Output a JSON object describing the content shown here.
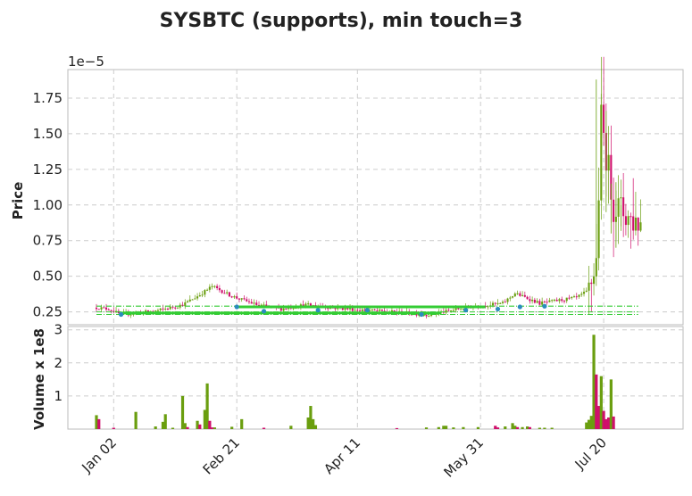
{
  "chart_data": {
    "type": "candlestick",
    "title": "SYSBTC (supports), min touch=3",
    "grid": true,
    "colors": {
      "up": "#6a9e0f",
      "down": "#cf0f6b",
      "support": "#33cc33",
      "touch_marker": "#2b8cbe",
      "grid": "#cccccc",
      "axis": "#bbbbbb"
    },
    "price_panel": {
      "ylabel": "Price",
      "scale_label": "1e−5",
      "ylim": [
        0.16,
        1.95
      ],
      "yticks": [
        0.25,
        0.5,
        0.75,
        1.0,
        1.25,
        1.5,
        1.75
      ],
      "ytick_labels": [
        "0.25",
        "0.50",
        "0.75",
        "1.00",
        "1.25",
        "1.50",
        "1.75"
      ]
    },
    "volume_panel": {
      "ylabel": "Volume x 1e8",
      "ylim": [
        0,
        3.1
      ],
      "yticks": [
        1,
        2,
        3
      ],
      "ytick_labels": [
        "1",
        "2",
        "3"
      ]
    },
    "x_range": [
      0,
      227
    ],
    "x_ticks": [
      {
        "label": "Jan 02",
        "x": 7
      },
      {
        "label": "Feb 21",
        "x": 57
      },
      {
        "label": "Apr 11",
        "x": 106
      },
      {
        "label": "May 31",
        "x": 156
      },
      {
        "label": "Jul 20",
        "x": 206
      }
    ],
    "support_levels": [
      {
        "level": 0.29,
        "x_start": 0,
        "x_end": 220,
        "style": "dash-dot"
      },
      {
        "level": 0.285,
        "x_start": 57,
        "x_end": 158,
        "style": "solid"
      },
      {
        "level": 0.25,
        "x_start": 0,
        "x_end": 220,
        "style": "dash-dot"
      },
      {
        "level": 0.242,
        "x_start": 10,
        "x_end": 140,
        "style": "solid"
      },
      {
        "level": 0.232,
        "x_start": 0,
        "x_end": 220,
        "style": "dash-dot"
      }
    ],
    "touch_points": [
      {
        "x": 10,
        "y": 0.232
      },
      {
        "x": 57,
        "y": 0.285
      },
      {
        "x": 68,
        "y": 0.255
      },
      {
        "x": 90,
        "y": 0.262
      },
      {
        "x": 110,
        "y": 0.262
      },
      {
        "x": 132,
        "y": 0.232
      },
      {
        "x": 150,
        "y": 0.262
      },
      {
        "x": 163,
        "y": 0.27
      },
      {
        "x": 172,
        "y": 0.285
      },
      {
        "x": 182,
        "y": 0.29
      }
    ],
    "segments": [
      {
        "x0": 0,
        "x1": 5,
        "p0": 0.28,
        "p1": 0.27
      },
      {
        "x0": 5,
        "x1": 10,
        "p0": 0.27,
        "p1": 0.23
      },
      {
        "x0": 10,
        "x1": 25,
        "p0": 0.23,
        "p1": 0.26
      },
      {
        "x0": 25,
        "x1": 35,
        "p0": 0.26,
        "p1": 0.3
      },
      {
        "x0": 35,
        "x1": 42,
        "p0": 0.3,
        "p1": 0.37
      },
      {
        "x0": 42,
        "x1": 47,
        "p0": 0.37,
        "p1": 0.43
      },
      {
        "x0": 47,
        "x1": 55,
        "p0": 0.43,
        "p1": 0.36
      },
      {
        "x0": 55,
        "x1": 65,
        "p0": 0.36,
        "p1": 0.3
      },
      {
        "x0": 65,
        "x1": 75,
        "p0": 0.3,
        "p1": 0.27
      },
      {
        "x0": 75,
        "x1": 85,
        "p0": 0.27,
        "p1": 0.3
      },
      {
        "x0": 85,
        "x1": 95,
        "p0": 0.3,
        "p1": 0.28
      },
      {
        "x0": 95,
        "x1": 110,
        "p0": 0.28,
        "p1": 0.26
      },
      {
        "x0": 110,
        "x1": 120,
        "p0": 0.26,
        "p1": 0.25
      },
      {
        "x0": 120,
        "x1": 135,
        "p0": 0.25,
        "p1": 0.23
      },
      {
        "x0": 135,
        "x1": 150,
        "p0": 0.23,
        "p1": 0.28
      },
      {
        "x0": 150,
        "x1": 165,
        "p0": 0.28,
        "p1": 0.31
      },
      {
        "x0": 165,
        "x1": 170,
        "p0": 0.31,
        "p1": 0.38
      },
      {
        "x0": 170,
        "x1": 180,
        "p0": 0.38,
        "p1": 0.31
      },
      {
        "x0": 180,
        "x1": 195,
        "p0": 0.31,
        "p1": 0.35
      },
      {
        "x0": 195,
        "x1": 200,
        "p0": 0.35,
        "p1": 0.4
      },
      {
        "x0": 200,
        "x1": 203,
        "p0": 0.4,
        "p1": 0.6
      },
      {
        "x0": 203,
        "x1": 205,
        "p0": 0.6,
        "p1": 1.6
      },
      {
        "x0": 205,
        "x1": 210,
        "p0": 1.6,
        "p1": 1.0
      },
      {
        "x0": 210,
        "x1": 214,
        "p0": 1.0,
        "p1": 0.95
      },
      {
        "x0": 214,
        "x1": 217,
        "p0": 0.95,
        "p1": 0.9
      },
      {
        "x0": 217,
        "x1": 221,
        "p0": 0.9,
        "p1": 0.88
      }
    ],
    "volume_spikes": [
      {
        "x": 0,
        "v": 0.42,
        "up": true
      },
      {
        "x": 1,
        "v": 0.3,
        "up": false
      },
      {
        "x": 7,
        "v": 0.04,
        "up": false
      },
      {
        "x": 16,
        "v": 0.52,
        "up": true
      },
      {
        "x": 24,
        "v": 0.08,
        "up": true
      },
      {
        "x": 27,
        "v": 0.22,
        "up": true
      },
      {
        "x": 28,
        "v": 0.45,
        "up": true
      },
      {
        "x": 31,
        "v": 0.04,
        "up": true
      },
      {
        "x": 35,
        "v": 1.0,
        "up": true
      },
      {
        "x": 36,
        "v": 0.18,
        "up": true
      },
      {
        "x": 37,
        "v": 0.06,
        "up": false
      },
      {
        "x": 41,
        "v": 0.25,
        "up": true
      },
      {
        "x": 42,
        "v": 0.14,
        "up": false
      },
      {
        "x": 44,
        "v": 0.58,
        "up": true
      },
      {
        "x": 45,
        "v": 1.38,
        "up": true
      },
      {
        "x": 46,
        "v": 0.25,
        "up": false
      },
      {
        "x": 47,
        "v": 0.05,
        "up": false
      },
      {
        "x": 48,
        "v": 0.05,
        "up": true
      },
      {
        "x": 55,
        "v": 0.07,
        "up": true
      },
      {
        "x": 59,
        "v": 0.3,
        "up": true
      },
      {
        "x": 68,
        "v": 0.04,
        "up": false
      },
      {
        "x": 79,
        "v": 0.1,
        "up": true
      },
      {
        "x": 86,
        "v": 0.35,
        "up": true
      },
      {
        "x": 87,
        "v": 0.7,
        "up": true
      },
      {
        "x": 88,
        "v": 0.3,
        "up": true
      },
      {
        "x": 89,
        "v": 0.12,
        "up": true
      },
      {
        "x": 122,
        "v": 0.03,
        "up": false
      },
      {
        "x": 134,
        "v": 0.05,
        "up": true
      },
      {
        "x": 139,
        "v": 0.06,
        "up": true
      },
      {
        "x": 141,
        "v": 0.1,
        "up": true
      },
      {
        "x": 142,
        "v": 0.1,
        "up": true
      },
      {
        "x": 145,
        "v": 0.05,
        "up": true
      },
      {
        "x": 149,
        "v": 0.06,
        "up": true
      },
      {
        "x": 155,
        "v": 0.06,
        "up": true
      },
      {
        "x": 162,
        "v": 0.1,
        "up": false
      },
      {
        "x": 163,
        "v": 0.05,
        "up": false
      },
      {
        "x": 166,
        "v": 0.08,
        "up": true
      },
      {
        "x": 169,
        "v": 0.18,
        "up": true
      },
      {
        "x": 170,
        "v": 0.1,
        "up": true
      },
      {
        "x": 171,
        "v": 0.06,
        "up": false
      },
      {
        "x": 173,
        "v": 0.06,
        "up": true
      },
      {
        "x": 175,
        "v": 0.08,
        "up": true
      },
      {
        "x": 176,
        "v": 0.06,
        "up": false
      },
      {
        "x": 180,
        "v": 0.04,
        "up": true
      },
      {
        "x": 182,
        "v": 0.04,
        "up": true
      },
      {
        "x": 185,
        "v": 0.04,
        "up": true
      },
      {
        "x": 199,
        "v": 0.2,
        "up": true
      },
      {
        "x": 200,
        "v": 0.28,
        "up": true
      },
      {
        "x": 201,
        "v": 0.4,
        "up": true
      },
      {
        "x": 202,
        "v": 2.85,
        "up": true
      },
      {
        "x": 203,
        "v": 1.65,
        "up": false
      },
      {
        "x": 204,
        "v": 0.7,
        "up": false
      },
      {
        "x": 205,
        "v": 1.6,
        "up": true
      },
      {
        "x": 206,
        "v": 0.55,
        "up": false
      },
      {
        "x": 207,
        "v": 0.3,
        "up": false
      },
      {
        "x": 208,
        "v": 0.35,
        "up": false
      },
      {
        "x": 209,
        "v": 1.5,
        "up": true
      },
      {
        "x": 210,
        "v": 0.38,
        "up": false
      }
    ]
  }
}
